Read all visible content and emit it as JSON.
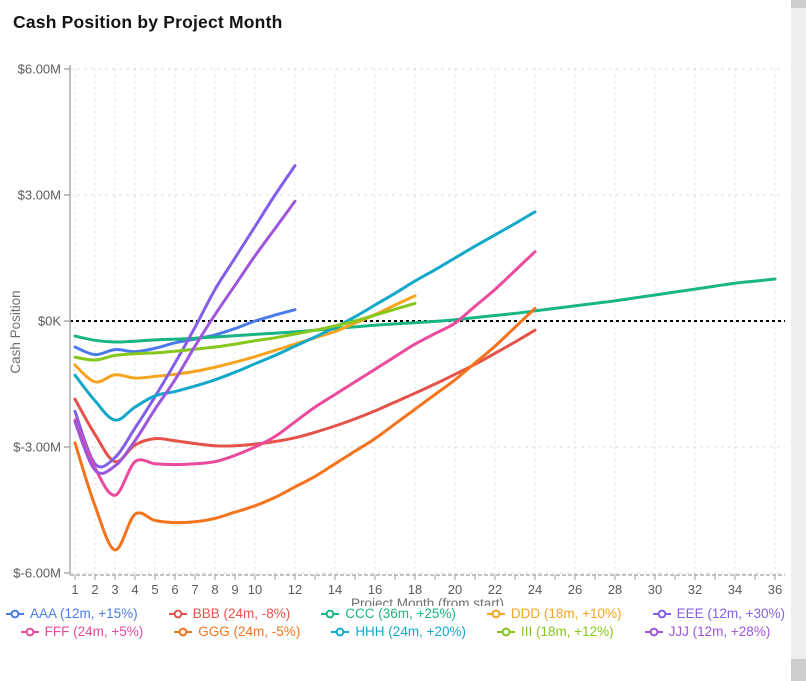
{
  "title": "Cash Position by Project Month",
  "chart_data": {
    "type": "line",
    "title": "Cash Position by Project Month",
    "xlabel": "Project Month (from start)",
    "ylabel": "Cash Position",
    "x_range": [
      1,
      36
    ],
    "ylim_millions": [
      -6,
      6
    ],
    "grid": true,
    "zero_line": true,
    "legend_position": "bottom",
    "x_tick_labels": [
      1,
      2,
      3,
      4,
      5,
      6,
      7,
      8,
      9,
      10,
      12,
      14,
      16,
      18,
      20,
      22,
      24,
      26,
      28,
      30,
      32,
      34,
      36
    ],
    "y_ticks": [
      {
        "label": "$6.00M",
        "value": 6
      },
      {
        "label": "$3.00M",
        "value": 3
      },
      {
        "label": "$0K",
        "value": 0
      },
      {
        "label": "$-3.00M",
        "value": -3
      },
      {
        "label": "$-6.00M",
        "value": -6
      }
    ],
    "series": [
      {
        "name": "AAA",
        "label": "AAA (12m, +15%)",
        "color": "#4a7bea",
        "values_millions": [
          -0.62,
          -0.8,
          -0.68,
          -0.73,
          -0.65,
          -0.52,
          -0.43,
          -0.33,
          -0.18,
          0.0,
          0.14,
          0.27
        ]
      },
      {
        "name": "BBB",
        "label": "BBB (24m, -8%)",
        "color": "#e5524a",
        "values_millions": [
          -1.86,
          -2.7,
          -3.35,
          -2.95,
          -2.8,
          -2.85,
          -2.92,
          -2.97,
          -2.97,
          -2.93,
          -2.87,
          -2.78,
          -2.65,
          -2.5,
          -2.33,
          -2.14,
          -1.93,
          -1.72,
          -1.5,
          -1.27,
          -1.03,
          -0.77,
          -0.5,
          -0.22
        ]
      },
      {
        "name": "CCC",
        "label": "CCC (36m, +25%)",
        "color": "#19b584",
        "values_millions": [
          -0.36,
          -0.46,
          -0.5,
          -0.48,
          -0.45,
          -0.43,
          -0.41,
          -0.38,
          -0.35,
          -0.32,
          -0.29,
          -0.26,
          -0.22,
          -0.18,
          -0.14,
          -0.1,
          -0.07,
          -0.04,
          -0.01,
          0.03,
          0.08,
          0.13,
          0.18,
          0.24,
          0.3,
          0.36,
          0.42,
          0.48,
          0.55,
          0.62,
          0.69,
          0.76,
          0.83,
          0.9,
          0.95,
          1.0
        ]
      },
      {
        "name": "DDD",
        "label": "DDD (18m, +10%)",
        "color": "#f5a41f",
        "values_millions": [
          -1.05,
          -1.45,
          -1.28,
          -1.36,
          -1.32,
          -1.27,
          -1.2,
          -1.1,
          -0.98,
          -0.85,
          -0.7,
          -0.55,
          -0.4,
          -0.25,
          -0.05,
          0.15,
          0.38,
          0.6
        ]
      },
      {
        "name": "EEE",
        "label": "EEE (12m, +30%)",
        "color": "#835fe8",
        "values_millions": [
          -2.15,
          -3.4,
          -3.25,
          -2.55,
          -1.8,
          -1.0,
          -0.15,
          0.75,
          1.5,
          2.25,
          3.0,
          3.7
        ]
      },
      {
        "name": "FFF",
        "label": "FFF (24m, +5%)",
        "color": "#eb4a9d",
        "values_millions": [
          -2.36,
          -3.5,
          -4.15,
          -3.35,
          -3.4,
          -3.42,
          -3.4,
          -3.35,
          -3.2,
          -3.0,
          -2.75,
          -2.4,
          -2.05,
          -1.75,
          -1.45,
          -1.15,
          -0.85,
          -0.55,
          -0.3,
          -0.05,
          0.35,
          0.75,
          1.2,
          1.65
        ]
      },
      {
        "name": "GGG",
        "label": "GGG (24m, -5%)",
        "color": "#f4731d",
        "values_millions": [
          -2.9,
          -4.4,
          -5.45,
          -4.6,
          -4.75,
          -4.8,
          -4.78,
          -4.7,
          -4.55,
          -4.4,
          -4.2,
          -3.95,
          -3.7,
          -3.4,
          -3.1,
          -2.8,
          -2.45,
          -2.1,
          -1.75,
          -1.4,
          -1.0,
          -0.6,
          -0.15,
          0.3
        ]
      },
      {
        "name": "HHH",
        "label": "HHH (24m, +20%)",
        "color": "#13a8ca",
        "values_millions": [
          -1.29,
          -1.9,
          -2.36,
          -2.05,
          -1.78,
          -1.68,
          -1.55,
          -1.4,
          -1.22,
          -1.02,
          -0.82,
          -0.6,
          -0.38,
          -0.15,
          0.1,
          0.38,
          0.66,
          0.95,
          1.22,
          1.5,
          1.78,
          2.05,
          2.32,
          2.6
        ]
      },
      {
        "name": "III",
        "label": "III (18m, +12%)",
        "color": "#86c71e",
        "values_millions": [
          -0.86,
          -0.93,
          -0.82,
          -0.78,
          -0.76,
          -0.72,
          -0.67,
          -0.62,
          -0.55,
          -0.47,
          -0.4,
          -0.31,
          -0.22,
          -0.12,
          0.0,
          0.14,
          0.28,
          0.42
        ]
      },
      {
        "name": "JJJ",
        "label": "JJJ (12m, +28%)",
        "color": "#9e57da",
        "values_millions": [
          -2.4,
          -3.55,
          -3.45,
          -2.85,
          -2.1,
          -1.4,
          -0.6,
          0.15,
          0.85,
          1.55,
          2.2,
          2.85
        ]
      }
    ]
  }
}
